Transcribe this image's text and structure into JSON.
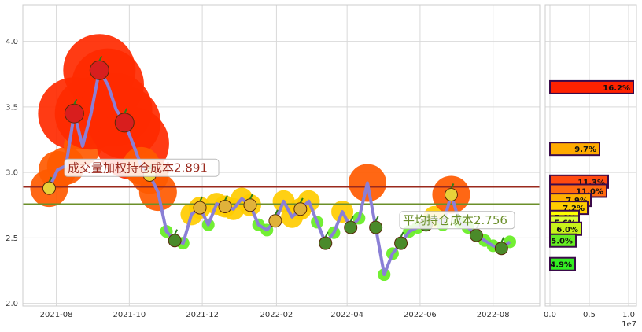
{
  "chart_data": [
    {
      "type": "line",
      "title": "",
      "xlabel": "",
      "ylabel": "",
      "ylim": [
        1.98,
        4.28
      ],
      "yticks": [
        "2.0",
        "2.5",
        "3.0",
        "3.5",
        "4.0"
      ],
      "xticks": [
        "2021-08",
        "2021-10",
        "2021-12",
        "2022-02",
        "2022-04",
        "2022-06",
        "2022-08"
      ],
      "grid": true,
      "series": [
        {
          "color": "#8a7fd6",
          "x": [
            "2021-07-26",
            "2021-08-02",
            "2021-08-09",
            "2021-08-16",
            "2021-08-23",
            "2021-08-30",
            "2021-09-06",
            "2021-09-13",
            "2021-09-20",
            "2021-09-27",
            "2021-10-04",
            "2021-10-11",
            "2021-10-18",
            "2021-10-25",
            "2021-11-01",
            "2021-11-08",
            "2021-11-15",
            "2021-11-22",
            "2021-11-29",
            "2021-12-06",
            "2021-12-13",
            "2021-12-20",
            "2021-12-27",
            "2022-01-03",
            "2022-01-10",
            "2022-01-17",
            "2022-01-24",
            "2022-01-31",
            "2022-02-07",
            "2022-02-14",
            "2022-02-21",
            "2022-02-28",
            "2022-03-07",
            "2022-03-14",
            "2022-03-21",
            "2022-03-28",
            "2022-04-04",
            "2022-04-11",
            "2022-04-18",
            "2022-04-25",
            "2022-05-02",
            "2022-05-09",
            "2022-05-16",
            "2022-05-23",
            "2022-05-30",
            "2022-06-06",
            "2022-06-13",
            "2022-06-20",
            "2022-06-27",
            "2022-07-04",
            "2022-07-11",
            "2022-07-18",
            "2022-07-25",
            "2022-08-01",
            "2022-08-08",
            "2022-08-15"
          ],
          "y": [
            2.88,
            3.02,
            3.05,
            3.45,
            3.2,
            3.45,
            3.78,
            3.67,
            3.48,
            3.38,
            3.22,
            3.05,
            2.98,
            2.85,
            2.55,
            2.48,
            2.46,
            2.68,
            2.73,
            2.6,
            2.76,
            2.74,
            2.72,
            2.8,
            2.75,
            2.6,
            2.56,
            2.63,
            2.78,
            2.66,
            2.72,
            2.78,
            2.62,
            2.46,
            2.54,
            2.7,
            2.58,
            2.65,
            2.92,
            2.58,
            2.22,
            2.38,
            2.46,
            2.55,
            2.58,
            2.6,
            2.66,
            2.6,
            2.83,
            2.62,
            2.58,
            2.52,
            2.48,
            2.44,
            2.42,
            2.47
          ]
        }
      ],
      "reference_lines": [
        {
          "label": "成交量加权持仓成本2.891",
          "value": 2.891,
          "color": "#9a2a1e"
        },
        {
          "label": "平均持仓成本2.756",
          "value": 2.756,
          "color": "#6b8f2a"
        }
      ]
    },
    {
      "type": "bar",
      "orientation": "horizontal",
      "title": "",
      "xticks": [
        "0.0",
        "0.5",
        "1.0"
      ],
      "xlim": [
        0,
        11000000.0
      ],
      "x_offset_label": "1e7",
      "bars": [
        {
          "price": 3.65,
          "value": 10600000.0,
          "label": "16.2%",
          "color": "#ff2200"
        },
        {
          "price": 3.18,
          "value": 6300000.0,
          "label": "9.7%",
          "color": "#ffaa00"
        },
        {
          "price": 2.93,
          "value": 7400000.0,
          "label": "11.3%",
          "color": "#ff4a10"
        },
        {
          "price": 2.86,
          "value": 7200000.0,
          "label": "11.0%",
          "color": "#ff6a10"
        },
        {
          "price": 2.79,
          "value": 5200000.0,
          "label": "7.9%",
          "color": "#ffb000"
        },
        {
          "price": 2.73,
          "value": 4800000.0,
          "label": "7.2%",
          "color": "#ffcc00"
        },
        {
          "price": 2.66,
          "value": 3700000.0,
          "label": "5.6%",
          "color": "#ffff00"
        },
        {
          "price": 2.62,
          "value": 3700000.0,
          "label": "5.6%",
          "color": "#ddff33"
        },
        {
          "price": 2.57,
          "value": 4000000.0,
          "label": "6.0%",
          "color": "#c8f21a"
        },
        {
          "price": 2.48,
          "value": 3300000.0,
          "label": "5.0%",
          "color": "#66ee22"
        },
        {
          "price": 2.3,
          "value": 3200000.0,
          "label": "4.9%",
          "color": "#33ee22"
        }
      ]
    }
  ]
}
